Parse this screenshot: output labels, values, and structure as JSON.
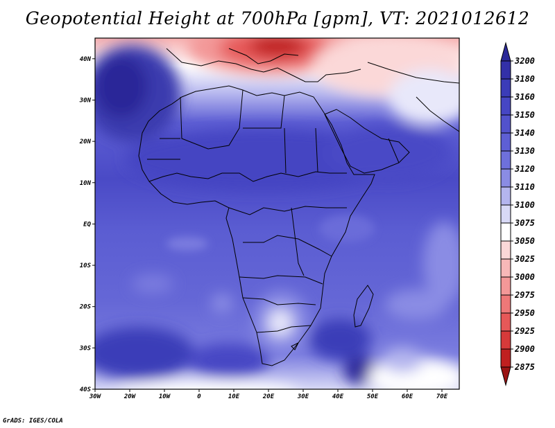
{
  "title": "Geopotential Height at 700hPa [gpm], VT: 2021012612",
  "credit": "GrADS: IGES/COLA",
  "map": {
    "lon_range": [
      -30,
      75
    ],
    "lat_range": [
      -40,
      45
    ],
    "x_ticks": [
      "30W",
      "20W",
      "10W",
      "0",
      "10E",
      "20E",
      "30E",
      "40E",
      "50E",
      "60E",
      "70E"
    ],
    "y_ticks": [
      "40S",
      "30S",
      "20S",
      "10S",
      "EQ",
      "10N",
      "20N",
      "30N",
      "40N"
    ],
    "features": [
      {
        "name": "mediterranean-low",
        "label": "low heights over Mediterranean / Balkans"
      },
      {
        "name": "atlantic-high",
        "label": "high centre over subtropical Atlantic"
      },
      {
        "name": "southern-africa-low",
        "label": "local minimum over southern Africa"
      },
      {
        "name": "south-indian-trough",
        "label": "trough south-east of Madagascar"
      }
    ]
  },
  "colorbar": {
    "levels": [
      "3200",
      "3180",
      "3160",
      "3150",
      "3140",
      "3130",
      "3120",
      "3110",
      "3100",
      "3075",
      "3050",
      "3025",
      "3000",
      "2975",
      "2950",
      "2925",
      "2900",
      "2875"
    ],
    "colors": [
      "#2b2898",
      "#3330a8",
      "#3b3cb8",
      "#4646c4",
      "#5252cc",
      "#5e5fd4",
      "#6e70dc",
      "#8a8ce4",
      "#b4b5ee",
      "#d8d9f6",
      "#ffffff",
      "#fbd8d8",
      "#f7b8b8",
      "#f39898",
      "#ee7878",
      "#e65858",
      "#d63a3a",
      "#c02020",
      "#9a1414"
    ]
  }
}
